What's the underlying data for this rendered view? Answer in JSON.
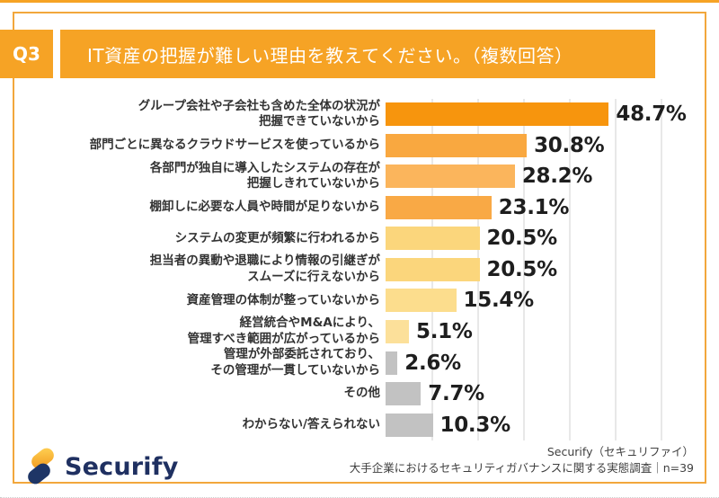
{
  "header": {
    "question_number": "Q3",
    "title": "IT資産の把握が難しい理由を教えてください。（複数回答）"
  },
  "colors": {
    "accent_orange": "#F6A325",
    "card_border": "#F2A73C",
    "grid_line": "#E8E8E8",
    "label_text": "#333333",
    "value_text": "#1E1E1E",
    "gray_bar": "#C2C2C2",
    "logo_navy": "#1E3566",
    "logo_yellow": "#F7A528",
    "footer_text": "#404040"
  },
  "chart_data": {
    "type": "bar",
    "orientation": "horizontal",
    "unit": "%",
    "title": "IT資産の把握が難しい理由を教えてください。（複数回答）",
    "xlabel": "",
    "ylabel": "",
    "xlim": [
      0,
      70
    ],
    "gridline_interval": 10,
    "grid": true,
    "legend": false,
    "categories": [
      "グループ会社や子会社も含めた全体の状況が把握できていないから",
      "部門ごとに異なるクラウドサービスを使っているから",
      "各部門が独自に導入したシステムの存在が把握しきれていないから",
      "棚卸しに必要な人員や時間が足りないから",
      "システムの変更が頻繁に行われるから",
      "担当者の異動や退職により情報の引継ぎがスムーズに行えないから",
      "資産管理の体制が整っていないから",
      "経営統合やM&Aにより、管理すべき範囲が広がっているから",
      "管理が外部委託されており、その管理が一貫していないから",
      "その他",
      "わからない/答えられない"
    ],
    "values": [
      48.7,
      30.8,
      28.2,
      23.1,
      20.5,
      20.5,
      15.4,
      5.1,
      2.6,
      7.7,
      10.3
    ],
    "rows": [
      {
        "lines": [
          "グループ会社や子会社も含めた全体の状況が",
          "把握できていないから"
        ],
        "value": 48.7,
        "label": "48.7%",
        "color": "#F7950D"
      },
      {
        "lines": [
          "部門ごとに異なるクラウドサービスを使っているから"
        ],
        "value": 30.8,
        "label": "30.8%",
        "color": "#F9A840"
      },
      {
        "lines": [
          "各部門が独自に導入したシステムの存在が",
          "把握しきれていないから"
        ],
        "value": 28.2,
        "label": "28.2%",
        "color": "#FBB55C"
      },
      {
        "lines": [
          "棚卸しに必要な人員や時間が足りないから"
        ],
        "value": 23.1,
        "label": "23.1%",
        "color": "#F9A945"
      },
      {
        "lines": [
          "システムの変更が頻繁に行われるから"
        ],
        "value": 20.5,
        "label": "20.5%",
        "color": "#FBD67C"
      },
      {
        "lines": [
          "担当者の異動や退職により情報の引継ぎが",
          "スムーズに行えないから"
        ],
        "value": 20.5,
        "label": "20.5%",
        "color": "#FBD67C"
      },
      {
        "lines": [
          "資産管理の体制が整っていないから"
        ],
        "value": 15.4,
        "label": "15.4%",
        "color": "#FCDD8D"
      },
      {
        "lines": [
          "経営統合やM&Aにより、",
          "管理すべき範囲が広がっているから"
        ],
        "value": 5.1,
        "label": "5.1%",
        "color": "#FCE09A"
      },
      {
        "lines": [
          "管理が外部委託されており、",
          "その管理が一貫していないから"
        ],
        "value": 2.6,
        "label": "2.6%",
        "color": "#C2C2C2"
      },
      {
        "lines": [
          "その他"
        ],
        "value": 7.7,
        "label": "7.7%",
        "color": "#C2C2C2"
      },
      {
        "lines": [
          "わからない/答えられない"
        ],
        "value": 10.3,
        "label": "10.3%",
        "color": "#C2C2C2"
      }
    ]
  },
  "footer": {
    "logo_text": "Securify",
    "source_line1": "Securify（セキュリファイ）",
    "source_line2": "大手企業におけるセキュリティガバナンスに関する実態調査｜n=39"
  }
}
